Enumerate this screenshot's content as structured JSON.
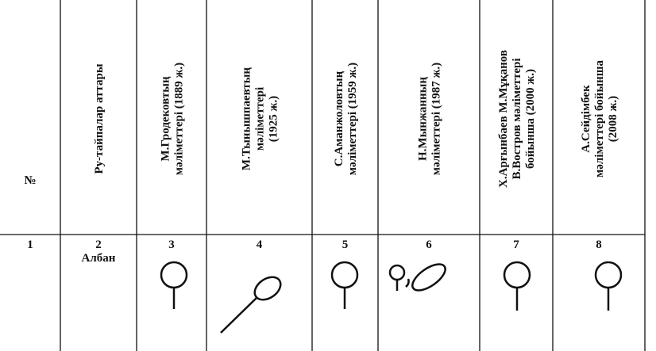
{
  "table": {
    "headers": [
      [
        "№"
      ],
      [
        "Ру-тайпалар аттары"
      ],
      [
        "М.Гродековтың",
        "мәліметтері (1889 ж.)"
      ],
      [
        "М.Тынышпаевтың",
        "мәліметтері",
        "(1925 ж.)"
      ],
      [
        "С.Аманжоловтың",
        "мәліметтері (1959 ж.)"
      ],
      [
        "Н.Мынжанның",
        "мәліметтері (1987 ж.)"
      ],
      [
        "Х.Арғынбаев М.Мұқанов",
        "В.Востров мәліметтері",
        "бойынша (2000 ж.)"
      ],
      [
        "А.Сейдімбек",
        "мәліметтері бойынша",
        "(2008 ж.)"
      ]
    ],
    "numbers": [
      "1",
      "2",
      "3",
      "4",
      "5",
      "6",
      "7",
      "8"
    ],
    "tribe": "Албан"
  }
}
